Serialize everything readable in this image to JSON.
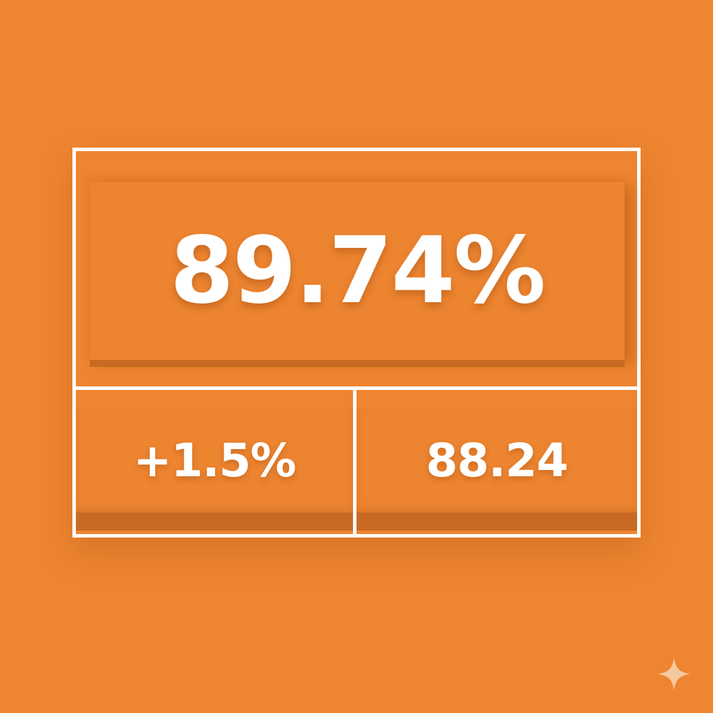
{
  "stat_card": {
    "main_value": "89.74%",
    "change_value": "+1.5%",
    "secondary_value": "88.24"
  },
  "colors": {
    "background": "#EE8530",
    "border": "#FFFFFF",
    "text": "#FFFFFF"
  },
  "icons": {
    "corner": "sparkle-icon"
  }
}
